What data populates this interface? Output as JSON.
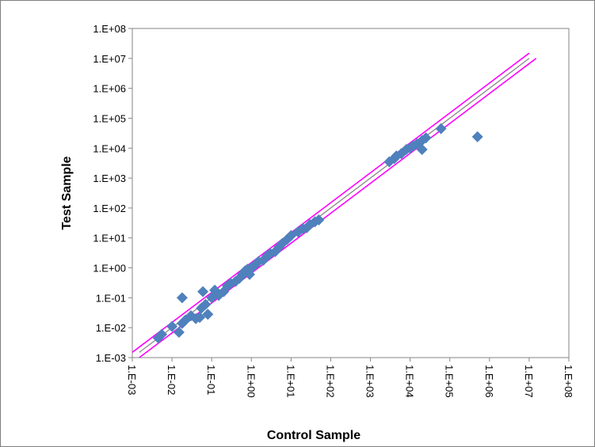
{
  "chart_data": {
    "type": "scatter",
    "xlabel": "Control Sample",
    "ylabel": "Test Sample",
    "x_scale": "log",
    "y_scale": "log",
    "xlim": [
      0.001,
      100000000
    ],
    "ylim": [
      0.001,
      100000000
    ],
    "x_tick_labels": [
      "1.E-03",
      "1.E-02",
      "1.E-01",
      "1.E+00",
      "1.E+01",
      "1.E+02",
      "1.E+03",
      "1.E+04",
      "1.E+05",
      "1.E+06",
      "1.E+07",
      "1.E+08"
    ],
    "y_tick_labels": [
      "1.E-03",
      "1.E-02",
      "1.E-01",
      "1.E+00",
      "1.E+01",
      "1.E+02",
      "1.E+03",
      "1.E+04",
      "1.E+05",
      "1.E+06",
      "1.E+07",
      "1.E+08"
    ],
    "grid": false,
    "legend": "none",
    "colors": {
      "points": "#4f81bd",
      "bounds": "#ff00ff",
      "identity": "#7f7f7f"
    },
    "reference_lines": [
      {
        "kind": "identity",
        "color": "#7f7f7f",
        "points": [
          [
            0.0015,
            0.0015
          ],
          [
            10000000,
            10000000
          ]
        ]
      },
      {
        "kind": "upper-bound",
        "color": "#ff00ff",
        "points": [
          [
            0.001,
            0.0015
          ],
          [
            10000000,
            15000000
          ]
        ]
      },
      {
        "kind": "lower-bound",
        "color": "#ff00ff",
        "points": [
          [
            0.0015,
            0.001
          ],
          [
            15000000,
            10000000
          ]
        ]
      }
    ],
    "points": [
      [
        0.0045,
        0.0045
      ],
      [
        0.0055,
        0.006
      ],
      [
        0.01,
        0.011
      ],
      [
        0.015,
        0.007
      ],
      [
        0.018,
        0.014
      ],
      [
        0.018,
        0.1
      ],
      [
        0.022,
        0.018
      ],
      [
        0.03,
        0.025
      ],
      [
        0.04,
        0.02
      ],
      [
        0.05,
        0.022
      ],
      [
        0.055,
        0.045
      ],
      [
        0.06,
        0.16
      ],
      [
        0.07,
        0.06
      ],
      [
        0.08,
        0.028
      ],
      [
        0.1,
        0.1
      ],
      [
        0.12,
        0.18
      ],
      [
        0.15,
        0.12
      ],
      [
        0.2,
        0.16
      ],
      [
        0.25,
        0.25
      ],
      [
        0.3,
        0.3
      ],
      [
        0.4,
        0.35
      ],
      [
        0.5,
        0.45
      ],
      [
        0.6,
        0.6
      ],
      [
        0.7,
        0.8
      ],
      [
        0.8,
        0.9
      ],
      [
        0.9,
        0.6
      ],
      [
        1.0,
        1.0
      ],
      [
        1.2,
        1.2
      ],
      [
        1.5,
        1.6
      ],
      [
        2.0,
        1.8
      ],
      [
        2.5,
        2.5
      ],
      [
        3.0,
        3.0
      ],
      [
        4.0,
        3.5
      ],
      [
        5.0,
        5.0
      ],
      [
        6.0,
        6.5
      ],
      [
        8.0,
        9.0
      ],
      [
        10.0,
        12.0
      ],
      [
        15.0,
        16.0
      ],
      [
        20.0,
        20.0
      ],
      [
        25.0,
        22.0
      ],
      [
        30.0,
        28.0
      ],
      [
        40.0,
        35.0
      ],
      [
        50.0,
        40.0
      ],
      [
        3000,
        3500
      ],
      [
        4000,
        4500
      ],
      [
        4500,
        5500
      ],
      [
        6000,
        6500
      ],
      [
        8000,
        9000
      ],
      [
        10000,
        10000
      ],
      [
        12000,
        12000
      ],
      [
        15000,
        14000
      ],
      [
        20000,
        18000
      ],
      [
        25000,
        22000
      ],
      [
        20000,
        9000
      ],
      [
        60000,
        45000
      ],
      [
        500000,
        24000
      ]
    ]
  }
}
